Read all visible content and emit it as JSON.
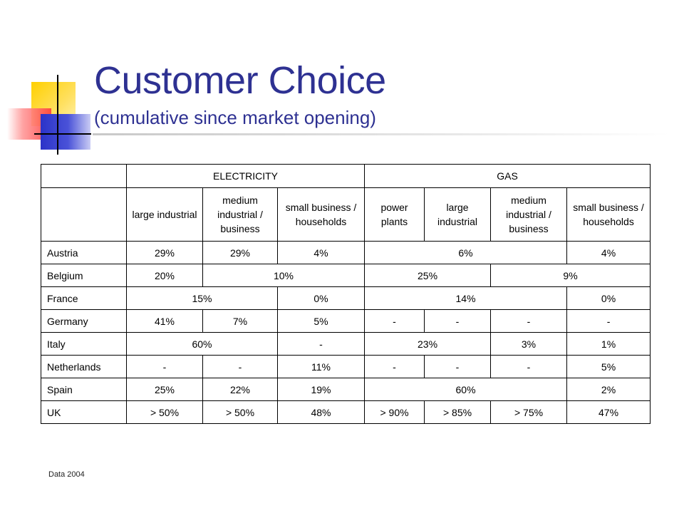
{
  "slide": {
    "title": "Customer Choice",
    "subtitle": "(cumulative since market opening)",
    "footer": "Data 2004"
  },
  "table": {
    "group_headers": [
      "",
      "ELECTRICITY",
      "GAS"
    ],
    "sub_headers": [
      "",
      "large industrial",
      "medium industrial / business",
      "small business / households",
      "power plants",
      "large industrial",
      "medium industrial / business",
      "small business / households"
    ],
    "rows": [
      {
        "country": "Austria",
        "cells": [
          "29%",
          "29%",
          "4%",
          "6%",
          "4%"
        ]
      },
      {
        "country": "Belgium",
        "cells": [
          "20%",
          "10%",
          "25%",
          "9%"
        ]
      },
      {
        "country": "France",
        "cells": [
          "15%",
          "0%",
          "14%",
          "0%"
        ]
      },
      {
        "country": "Germany",
        "cells": [
          "41%",
          "7%",
          "5%",
          "-",
          "-",
          "-",
          "-"
        ]
      },
      {
        "country": "Italy",
        "cells": [
          "60%",
          "-",
          "23%",
          "3%",
          "1%"
        ]
      },
      {
        "country": "Netherlands",
        "cells": [
          "-",
          "-",
          "11%",
          "-",
          "-",
          "-",
          "5%"
        ]
      },
      {
        "country": "Spain",
        "cells": [
          "25%",
          "22%",
          "19%",
          "60%",
          "2%"
        ]
      },
      {
        "country": "UK",
        "cells": [
          "> 50%",
          "> 50%",
          "48%",
          "> 90%",
          "> 85%",
          "> 75%",
          "47%"
        ]
      }
    ]
  }
}
